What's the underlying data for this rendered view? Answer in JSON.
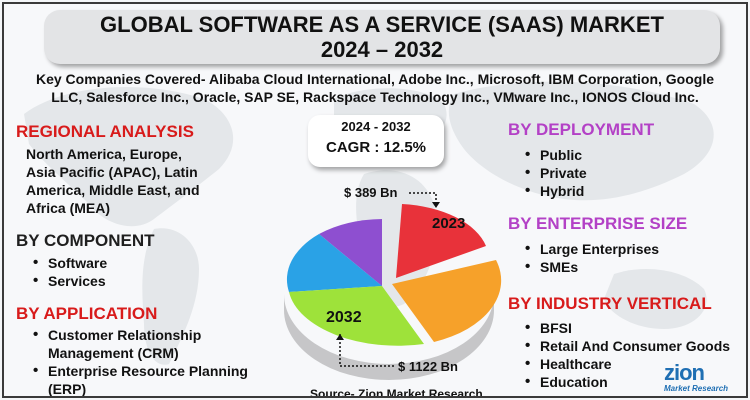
{
  "title": {
    "line1": "GLOBAL SOFTWARE AS A SERVICE (SAAS) MARKET",
    "line2": "2024 – 2032"
  },
  "companies": {
    "line1": "Key Companies Covered- Alibaba Cloud International, Adobe Inc., Microsoft, IBM Corporation, Google",
    "line2": "LLC, Salesforce Inc., Oracle, SAP SE, Rackspace Technology Inc., VMware Inc., IONOS Cloud Inc."
  },
  "regional": {
    "heading": "REGIONAL ANALYSIS",
    "lines": [
      "North America, Europe,",
      "Asia Pacific (APAC), Latin",
      "America, Middle East, and",
      "Africa (MEA)"
    ]
  },
  "component": {
    "heading": "BY COMPONENT",
    "items": [
      "Software",
      "Services"
    ]
  },
  "application": {
    "heading": "BY APPLICATION",
    "items": [
      {
        "line1": "Customer Relationship",
        "line2": "Management (CRM)"
      },
      {
        "line1": "Enterprise Resource Planning",
        "line2": "(ERP)"
      }
    ]
  },
  "deployment": {
    "heading": "BY DEPLOYMENT",
    "items": [
      "Public",
      "Private",
      "Hybrid"
    ]
  },
  "enterprise": {
    "heading": "BY ENTERPRISE SIZE",
    "items": [
      "Large Enterprises",
      "SMEs"
    ]
  },
  "industry": {
    "heading": "BY INDUSTRY VERTICAL",
    "items": [
      "BFSI",
      "Retail And Consumer Goods",
      "Healthcare",
      "Education"
    ]
  },
  "cagr": {
    "period": "2024 - 2032",
    "value": "CAGR : 12.5%"
  },
  "pie": {
    "label_2023": "2023",
    "label_2032": "2032",
    "value_2023": "$ 389 Bn",
    "value_2032": "$ 1122 Bn",
    "colors": [
      "#e8323a",
      "#f6a12a",
      "#9ee23a",
      "#2aa2e6",
      "#8e4fd0"
    ]
  },
  "source": "Source- Zion Market Research",
  "logo": {
    "name": "zion",
    "tagline": "Market Research"
  },
  "colors": {
    "red_heading": "#d81b1b",
    "purple_heading": "#b341c6"
  }
}
